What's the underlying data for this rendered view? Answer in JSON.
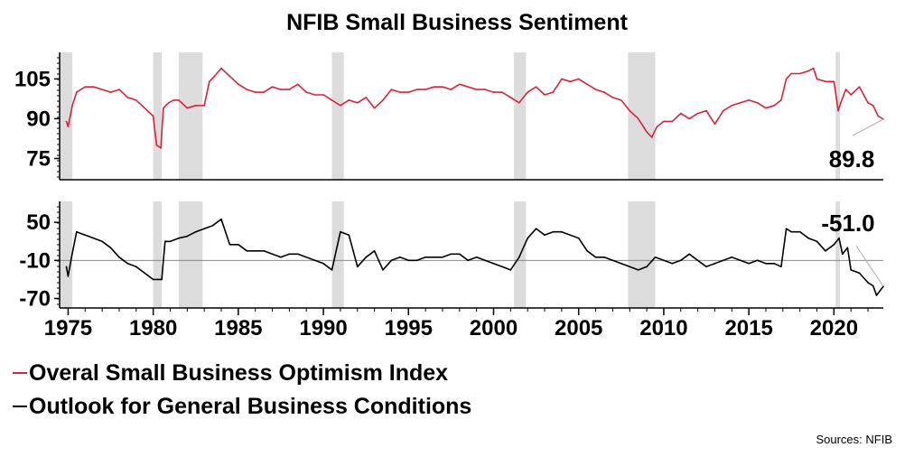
{
  "title": "NFIB Small Business Sentiment",
  "source": "Sources: NFIB",
  "colors": {
    "optimism": "#d8233a",
    "outlook": "#000000",
    "recession": "#dcdcdc",
    "zero_line": "#888888"
  },
  "chart_data": [
    {
      "type": "line",
      "title": "NFIB Small Business Sentiment",
      "ylim": [
        67,
        115
      ],
      "yticks": [
        "105",
        "90",
        "75"
      ],
      "ytick_values": [
        105,
        90,
        75
      ],
      "xlim": [
        1974.5,
        2022.9
      ],
      "xticks": [
        "1975",
        "1980",
        "1985",
        "1990",
        "1995",
        "2000",
        "2005",
        "2010",
        "2015",
        "2020"
      ],
      "xtick_values": [
        1975,
        1980,
        1985,
        1990,
        1995,
        2000,
        2005,
        2010,
        2015,
        2020
      ],
      "recessions": [
        [
          1974.5,
          1975.25
        ],
        [
          1980.0,
          1980.5
        ],
        [
          1981.5,
          1982.9
        ],
        [
          1990.5,
          1991.2
        ],
        [
          2001.2,
          2001.9
        ],
        [
          2007.9,
          2009.5
        ],
        [
          2020.1,
          2020.35
        ]
      ],
      "series": [
        {
          "name": "Overal Small Business Optimism Index",
          "color": "#d8233a",
          "x": [
            1974.9,
            1975.0,
            1975.25,
            1975.5,
            1976.0,
            1976.5,
            1977.0,
            1977.5,
            1978.0,
            1978.5,
            1979.0,
            1979.5,
            1980.0,
            1980.2,
            1980.45,
            1980.6,
            1980.9,
            1981.2,
            1981.5,
            1982.0,
            1982.5,
            1983.0,
            1983.3,
            1983.6,
            1984.0,
            1984.5,
            1985.0,
            1985.5,
            1986.0,
            1986.5,
            1987.0,
            1987.5,
            1988.0,
            1988.5,
            1989.0,
            1989.5,
            1990.0,
            1990.5,
            1991.0,
            1991.5,
            1992.0,
            1992.5,
            1993.0,
            1993.5,
            1994.0,
            1994.5,
            1995.0,
            1995.5,
            1996.0,
            1996.5,
            1997.0,
            1997.5,
            1998.0,
            1998.5,
            1999.0,
            1999.5,
            2000.0,
            2000.5,
            2001.0,
            2001.5,
            2002.0,
            2002.5,
            2003.0,
            2003.5,
            2004.0,
            2004.5,
            2005.0,
            2005.5,
            2006.0,
            2006.5,
            2007.0,
            2007.5,
            2008.0,
            2008.5,
            2009.0,
            2009.3,
            2009.6,
            2010.0,
            2010.5,
            2011.0,
            2011.5,
            2012.0,
            2012.5,
            2013.0,
            2013.5,
            2014.0,
            2014.5,
            2015.0,
            2015.5,
            2016.0,
            2016.5,
            2016.9,
            2017.2,
            2017.5,
            2018.0,
            2018.5,
            2018.8,
            2019.0,
            2019.5,
            2020.0,
            2020.25,
            2020.4,
            2020.7,
            2021.0,
            2021.5,
            2022.0,
            2022.3,
            2022.6,
            2022.9
          ],
          "y": [
            89,
            87,
            95,
            100,
            102,
            102,
            101,
            100,
            101,
            98,
            97,
            94,
            91,
            80,
            79,
            94,
            96,
            97,
            97,
            94,
            95,
            95,
            104,
            106,
            109,
            106,
            103,
            101,
            100,
            100,
            102,
            101,
            101,
            103,
            100,
            99,
            99,
            97,
            95,
            97,
            96,
            98,
            94,
            97,
            101,
            100,
            100,
            101,
            101,
            102,
            102,
            101,
            103,
            102,
            101,
            101,
            100,
            100,
            98,
            96,
            100,
            102,
            99,
            100,
            105,
            104,
            105,
            103,
            101,
            100,
            98,
            97,
            93,
            90,
            85,
            83,
            87,
            89,
            89,
            92,
            90,
            92,
            93,
            88,
            93,
            95,
            96,
            97,
            96,
            94,
            95,
            97,
            105,
            107,
            107,
            108,
            109,
            105,
            104,
            104,
            93,
            96,
            101,
            99,
            102,
            96,
            95,
            91,
            89.8
          ]
        }
      ],
      "annotations": [
        {
          "text": "89.8",
          "x": 2022.9,
          "y": 89.8
        }
      ]
    },
    {
      "type": "line",
      "ylim": [
        -85,
        83
      ],
      "yticks": [
        "50",
        "-10",
        "-70"
      ],
      "ytick_values": [
        50,
        -10,
        -70
      ],
      "reference_line": -10,
      "series": [
        {
          "name": "Outlook for General Business Conditions",
          "color": "#000000",
          "x": [
            1974.9,
            1975.0,
            1975.2,
            1975.5,
            1976.0,
            1976.5,
            1977.0,
            1977.5,
            1978.0,
            1978.5,
            1979.0,
            1979.5,
            1980.0,
            1980.5,
            1980.6,
            1980.7,
            1981.0,
            1981.5,
            1982.0,
            1982.5,
            1983.0,
            1983.5,
            1984.0,
            1984.5,
            1985.0,
            1985.5,
            1986.0,
            1986.5,
            1987.0,
            1987.5,
            1988.0,
            1988.5,
            1989.0,
            1989.5,
            1990.0,
            1990.5,
            1991.0,
            1991.5,
            1992.0,
            1992.5,
            1993.0,
            1993.5,
            1994.0,
            1994.5,
            1995.0,
            1995.5,
            1996.0,
            1996.5,
            1997.0,
            1997.5,
            1998.0,
            1998.5,
            1999.0,
            1999.5,
            2000.0,
            2000.5,
            2001.0,
            2001.5,
            2002.0,
            2002.5,
            2003.0,
            2003.5,
            2004.0,
            2004.5,
            2005.0,
            2005.5,
            2006.0,
            2006.5,
            2007.0,
            2007.5,
            2008.0,
            2008.5,
            2009.0,
            2009.5,
            2010.0,
            2010.5,
            2011.0,
            2011.5,
            2012.0,
            2012.5,
            2013.0,
            2013.5,
            2014.0,
            2014.5,
            2015.0,
            2015.5,
            2016.0,
            2016.5,
            2016.9,
            2017.2,
            2017.5,
            2018.0,
            2018.5,
            2019.0,
            2019.5,
            2020.0,
            2020.3,
            2020.5,
            2020.8,
            2021.0,
            2021.5,
            2022.0,
            2022.3,
            2022.5,
            2022.9
          ],
          "y": [
            -20,
            -35,
            -5,
            35,
            30,
            25,
            20,
            10,
            -5,
            -15,
            -20,
            -30,
            -40,
            -40,
            -10,
            20,
            20,
            25,
            28,
            35,
            40,
            45,
            55,
            15,
            15,
            5,
            5,
            5,
            0,
            -5,
            0,
            0,
            -5,
            -10,
            -15,
            -25,
            35,
            30,
            -20,
            -5,
            5,
            -25,
            -10,
            -5,
            -10,
            -10,
            -5,
            -5,
            -5,
            0,
            0,
            -10,
            -5,
            -10,
            -15,
            -20,
            -25,
            -5,
            25,
            40,
            30,
            35,
            35,
            30,
            25,
            5,
            -5,
            -5,
            -10,
            -15,
            -20,
            -25,
            -20,
            -5,
            -10,
            -15,
            -10,
            0,
            -10,
            -20,
            -15,
            -10,
            -5,
            -10,
            -15,
            -10,
            -15,
            -15,
            -20,
            40,
            35,
            35,
            25,
            20,
            5,
            15,
            25,
            0,
            10,
            -25,
            -30,
            -45,
            -50,
            -65,
            -51
          ]
        }
      ],
      "annotations": [
        {
          "text": "-51.0",
          "x": 2022.9,
          "y": -51
        }
      ]
    }
  ]
}
